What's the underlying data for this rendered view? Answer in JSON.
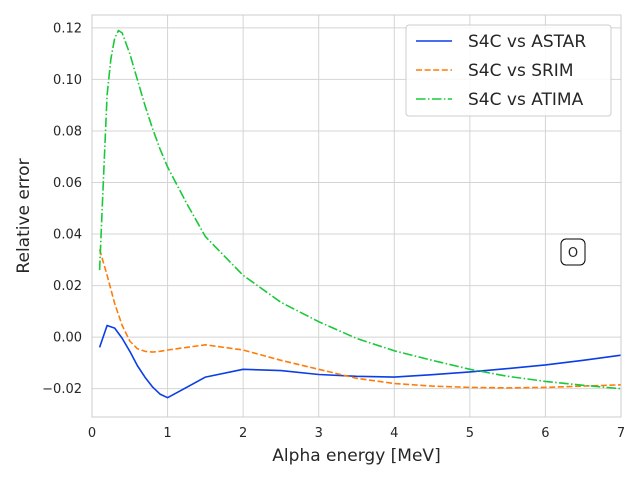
{
  "chart_data": {
    "type": "line",
    "title": "",
    "xlabel": "Alpha energy [MeV]",
    "ylabel": "Relative  error",
    "xlim": [
      0,
      7
    ],
    "ylim": [
      -0.031,
      0.125
    ],
    "xticks": [
      0,
      1,
      2,
      3,
      4,
      5,
      6,
      7
    ],
    "xtick_labels": [
      "0",
      "1",
      "2",
      "3",
      "4",
      "5",
      "6",
      "7"
    ],
    "yticks": [
      -0.02,
      0.0,
      0.02,
      0.04,
      0.06,
      0.08,
      0.1,
      0.12
    ],
    "ytick_labels": [
      "−0.02",
      "0.00",
      "0.02",
      "0.04",
      "0.06",
      "0.08",
      "0.10",
      "0.12"
    ],
    "grid": true,
    "legend_position": "top-right",
    "annotation": "O",
    "series": [
      {
        "name": "S4C vs ASTAR",
        "color": "#0b3ee6",
        "dash": "solid",
        "x": [
          0.1,
          0.2,
          0.3,
          0.4,
          0.5,
          0.6,
          0.7,
          0.8,
          0.9,
          1.0,
          1.25,
          1.5,
          2.0,
          2.5,
          3.0,
          3.5,
          4.0,
          4.5,
          5.0,
          5.5,
          6.0,
          6.5,
          7.0
        ],
        "y": [
          -0.004,
          0.0045,
          0.0035,
          -0.0005,
          -0.0055,
          -0.011,
          -0.0155,
          -0.0193,
          -0.0221,
          -0.0235,
          -0.0195,
          -0.0155,
          -0.0125,
          -0.013,
          -0.0145,
          -0.0152,
          -0.0155,
          -0.0146,
          -0.0135,
          -0.0122,
          -0.0108,
          -0.009,
          -0.007
        ]
      },
      {
        "name": "S4C vs SRIM",
        "color": "#ff7c0a",
        "dash": "dashed",
        "x": [
          0.1,
          0.2,
          0.3,
          0.4,
          0.5,
          0.6,
          0.7,
          0.8,
          0.9,
          1.0,
          1.25,
          1.5,
          2.0,
          2.5,
          3.0,
          3.5,
          4.0,
          4.5,
          5.0,
          5.5,
          6.0,
          6.5,
          7.0
        ],
        "y": [
          0.034,
          0.024,
          0.013,
          0.0045,
          -0.0015,
          -0.0045,
          -0.0055,
          -0.0058,
          -0.0055,
          -0.005,
          -0.004,
          -0.003,
          -0.005,
          -0.009,
          -0.0125,
          -0.016,
          -0.018,
          -0.019,
          -0.0195,
          -0.0197,
          -0.0195,
          -0.019,
          -0.0185
        ]
      },
      {
        "name": "S4C vs ATIMA",
        "color": "#1ac938",
        "dash": "dashdot",
        "x": [
          0.1,
          0.15,
          0.2,
          0.25,
          0.3,
          0.35,
          0.4,
          0.5,
          0.6,
          0.7,
          0.8,
          0.9,
          1.0,
          1.25,
          1.5,
          2.0,
          2.5,
          3.0,
          3.5,
          4.0,
          4.5,
          5.0,
          5.5,
          6.0,
          6.5,
          7.0
        ],
        "y": [
          0.026,
          0.06,
          0.094,
          0.108,
          0.116,
          0.119,
          0.118,
          0.11,
          0.1,
          0.09,
          0.081,
          0.073,
          0.066,
          0.052,
          0.039,
          0.024,
          0.0135,
          0.006,
          -0.0005,
          -0.0053,
          -0.009,
          -0.0125,
          -0.0152,
          -0.0172,
          -0.0187,
          -0.02
        ]
      }
    ]
  }
}
